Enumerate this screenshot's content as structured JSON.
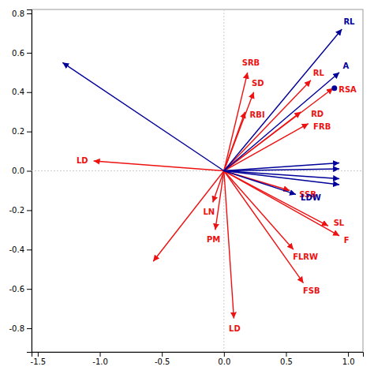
{
  "chart_data": {
    "type": "vector",
    "xlim": [
      -1.55,
      1.12
    ],
    "ylim": [
      -0.92,
      0.82
    ],
    "xticks": [
      {
        "value": -1.5,
        "label": "-1.5"
      },
      {
        "value": -1.0,
        "label": "-1.0"
      },
      {
        "value": -0.5,
        "label": "-0.5"
      },
      {
        "value": 0,
        "label": "0.0"
      },
      {
        "value": 0.5,
        "label": "0.5"
      },
      {
        "value": 1.0,
        "label": "1.0"
      }
    ],
    "yticks": [
      {
        "value": -0.8,
        "label": "-0.8"
      },
      {
        "value": -0.6,
        "label": "-0.6"
      },
      {
        "value": -0.4,
        "label": "-0.4"
      },
      {
        "value": -0.2,
        "label": "-0.2"
      },
      {
        "value": 0,
        "label": "0.0"
      },
      {
        "value": 0.2,
        "label": "0.2"
      },
      {
        "value": 0.4,
        "label": "0.4"
      },
      {
        "value": 0.6,
        "label": "0.6"
      },
      {
        "value": 0.8,
        "label": "0.8"
      }
    ],
    "origin": [
      0,
      0
    ],
    "series": [
      {
        "type": "vector",
        "color": "#ee1111",
        "x": [
          0.19,
          0.24,
          0.17,
          0.7,
          0.88,
          0.62,
          0.68,
          -1.05,
          -0.09,
          -0.07,
          0.53,
          0.84,
          0.56,
          0.64,
          0.08,
          -0.57,
          0.93
        ],
        "values": [
          0.5,
          0.4,
          0.3,
          0.46,
          0.42,
          0.3,
          0.24,
          0.05,
          -0.16,
          -0.3,
          -0.1,
          -0.28,
          -0.4,
          -0.57,
          -0.75,
          -0.46,
          -0.33
        ],
        "labels": [
          "SRB",
          "SD",
          "RBI",
          "RL",
          "RSA",
          "RD",
          "FRB",
          "LD",
          "LN",
          "PM",
          "SSB",
          "SL",
          "FLRW",
          "FSB",
          "LD",
          null,
          "F"
        ]
      },
      {
        "type": "vector",
        "color": "#000099",
        "x": [
          0.95,
          0.93,
          0.58,
          -1.3
        ],
        "values": [
          0.72,
          0.5,
          -0.12,
          0.55
        ],
        "labels": [
          "RL",
          "A",
          "LDW",
          null
        ]
      },
      {
        "type": "vector",
        "color": "#000099",
        "x": [
          0.93,
          0.93,
          0.93,
          0.93
        ],
        "values": [
          0.01,
          -0.04,
          -0.07,
          0.04
        ]
      },
      {
        "type": "scatter",
        "color": "#000099",
        "marker": "circle",
        "x": [
          0.89
        ],
        "values": [
          0.42
        ]
      }
    ]
  }
}
